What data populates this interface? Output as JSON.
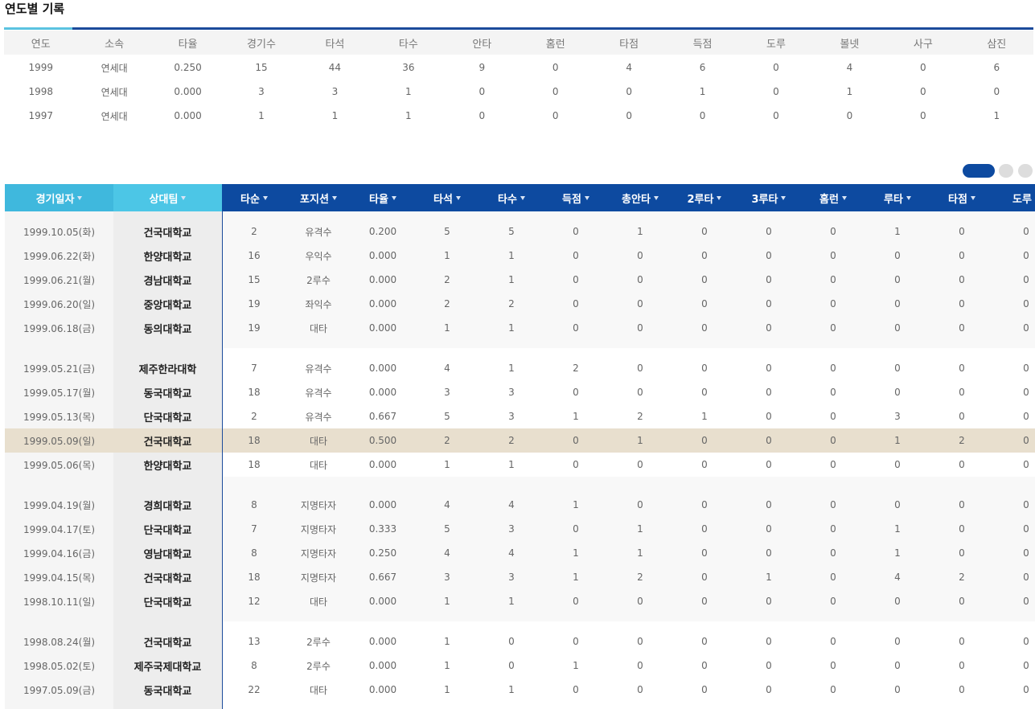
{
  "title": "연도별 기록",
  "yearly": {
    "headers": [
      "연도",
      "소속",
      "타율",
      "경기수",
      "타석",
      "타수",
      "안타",
      "홈런",
      "타점",
      "득점",
      "도루",
      "볼넷",
      "사구",
      "삼진"
    ],
    "rows": [
      [
        "1999",
        "연세대",
        "0.250",
        "15",
        "44",
        "36",
        "9",
        "0",
        "4",
        "6",
        "0",
        "4",
        "0",
        "6"
      ],
      [
        "1998",
        "연세대",
        "0.000",
        "3",
        "3",
        "1",
        "0",
        "0",
        "0",
        "1",
        "0",
        "1",
        "0",
        "0"
      ],
      [
        "1997",
        "연세대",
        "0.000",
        "1",
        "1",
        "1",
        "0",
        "0",
        "0",
        "0",
        "0",
        "0",
        "0",
        "1"
      ]
    ]
  },
  "games": {
    "headers": [
      "경기일자",
      "상대팀",
      "타순",
      "포지션",
      "타율",
      "타석",
      "타수",
      "득점",
      "총안타",
      "2루타",
      "3루타",
      "홈런",
      "루타",
      "타점",
      "도루"
    ],
    "groups": [
      [
        [
          "1999.10.05(화)",
          "건국대학교",
          "2",
          "유격수",
          "0.200",
          "5",
          "5",
          "0",
          "1",
          "0",
          "0",
          "0",
          "1",
          "0",
          "0"
        ],
        [
          "1999.06.22(화)",
          "한양대학교",
          "16",
          "우익수",
          "0.000",
          "1",
          "1",
          "0",
          "0",
          "0",
          "0",
          "0",
          "0",
          "0",
          "0"
        ],
        [
          "1999.06.21(월)",
          "경남대학교",
          "15",
          "2루수",
          "0.000",
          "2",
          "1",
          "0",
          "0",
          "0",
          "0",
          "0",
          "0",
          "0",
          "0"
        ],
        [
          "1999.06.20(일)",
          "중앙대학교",
          "19",
          "좌익수",
          "0.000",
          "2",
          "2",
          "0",
          "0",
          "0",
          "0",
          "0",
          "0",
          "0",
          "0"
        ],
        [
          "1999.06.18(금)",
          "동의대학교",
          "19",
          "대타",
          "0.000",
          "1",
          "1",
          "0",
          "0",
          "0",
          "0",
          "0",
          "0",
          "0",
          "0"
        ]
      ],
      [
        [
          "1999.05.21(금)",
          "제주한라대학",
          "7",
          "유격수",
          "0.000",
          "4",
          "1",
          "2",
          "0",
          "0",
          "0",
          "0",
          "0",
          "0",
          "0"
        ],
        [
          "1999.05.17(월)",
          "동국대학교",
          "18",
          "유격수",
          "0.000",
          "3",
          "3",
          "0",
          "0",
          "0",
          "0",
          "0",
          "0",
          "0",
          "0"
        ],
        [
          "1999.05.13(목)",
          "단국대학교",
          "2",
          "유격수",
          "0.667",
          "5",
          "3",
          "1",
          "2",
          "1",
          "0",
          "0",
          "3",
          "0",
          "0"
        ],
        [
          "1999.05.09(일)",
          "건국대학교",
          "18",
          "대타",
          "0.500",
          "2",
          "2",
          "0",
          "1",
          "0",
          "0",
          "0",
          "1",
          "2",
          "0"
        ],
        [
          "1999.05.06(목)",
          "한양대학교",
          "18",
          "대타",
          "0.000",
          "1",
          "1",
          "0",
          "0",
          "0",
          "0",
          "0",
          "0",
          "0",
          "0"
        ]
      ],
      [
        [
          "1999.04.19(월)",
          "경희대학교",
          "8",
          "지명타자",
          "0.000",
          "4",
          "4",
          "1",
          "0",
          "0",
          "0",
          "0",
          "0",
          "0",
          "0"
        ],
        [
          "1999.04.17(토)",
          "단국대학교",
          "7",
          "지명타자",
          "0.333",
          "5",
          "3",
          "0",
          "1",
          "0",
          "0",
          "0",
          "1",
          "0",
          "0"
        ],
        [
          "1999.04.16(금)",
          "영남대학교",
          "8",
          "지명타자",
          "0.250",
          "4",
          "4",
          "1",
          "1",
          "0",
          "0",
          "0",
          "1",
          "0",
          "0"
        ],
        [
          "1999.04.15(목)",
          "건국대학교",
          "18",
          "지명타자",
          "0.667",
          "3",
          "3",
          "1",
          "2",
          "0",
          "1",
          "0",
          "4",
          "2",
          "0"
        ],
        [
          "1998.10.11(일)",
          "단국대학교",
          "12",
          "대타",
          "0.000",
          "1",
          "1",
          "0",
          "0",
          "0",
          "0",
          "0",
          "0",
          "0",
          "0"
        ]
      ],
      [
        [
          "1998.08.24(월)",
          "건국대학교",
          "13",
          "2루수",
          "0.000",
          "1",
          "0",
          "0",
          "0",
          "0",
          "0",
          "0",
          "0",
          "0",
          "0"
        ],
        [
          "1998.05.02(토)",
          "제주국제대학교",
          "8",
          "2루수",
          "0.000",
          "1",
          "0",
          "1",
          "0",
          "0",
          "0",
          "0",
          "0",
          "0",
          "0"
        ],
        [
          "1997.05.09(금)",
          "동국대학교",
          "22",
          "대타",
          "0.000",
          "1",
          "1",
          "0",
          "0",
          "0",
          "0",
          "0",
          "0",
          "0",
          "0"
        ]
      ]
    ]
  }
}
